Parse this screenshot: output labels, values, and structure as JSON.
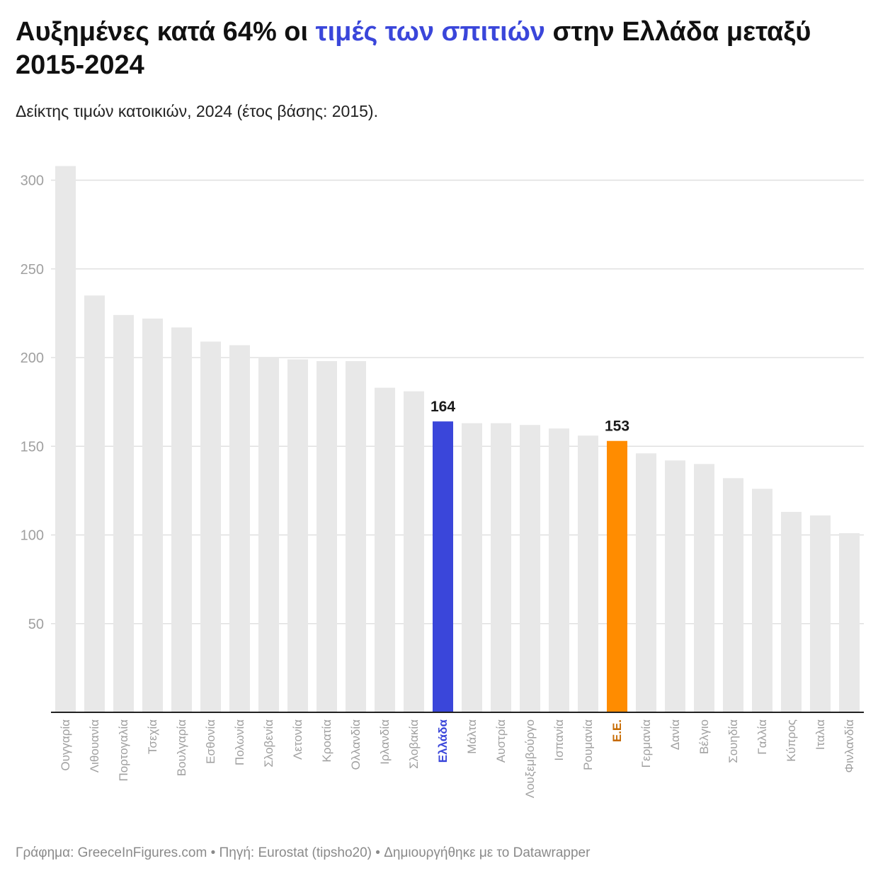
{
  "title": {
    "part1": "Αυξημένες κατά 64% οι ",
    "highlight": "τιμές των σπιτιών",
    "part2": " στην Ελλάδα μεταξύ 2015-2024"
  },
  "subtitle": "Δείκτης τιμών κατοικιών, 2024 (έτος βάσης: 2015).",
  "footer": {
    "credit": "Γράφημα: GreeceInFigures.com",
    "source": "Πηγή: Eurostat (tipsho20)",
    "tool": "Δημιουργήθηκε με το Datawrapper",
    "separator": " • "
  },
  "colors": {
    "default_bar": "#e8e8e8",
    "greece": "#3a46da",
    "eu": "#ff8c00",
    "eu_label": "#c66a00",
    "grid": "#e0e0e0",
    "tick_text": "#a0a0a0",
    "axis": "#222222"
  },
  "chart_data": {
    "type": "bar",
    "title": "Αυξημένες κατά 64% οι τιμές των σπιτιών στην Ελλάδα μεταξύ 2015-2024",
    "subtitle": "Δείκτης τιμών κατοικιών, 2024 (έτος βάσης: 2015).",
    "xlabel": "",
    "ylabel": "",
    "ylim": [
      0,
      310
    ],
    "yticks": [
      50,
      100,
      150,
      200,
      250,
      300
    ],
    "grid": true,
    "categories": [
      "Ουγγαρία",
      "Λιθουανία",
      "Πορτογαλία",
      "Τσεχία",
      "Βουλγαρία",
      "Εσθονία",
      "Πολωνία",
      "Σλοβενία",
      "Λετονία",
      "Κροατία",
      "Ολλανδία",
      "Ιρλανδία",
      "Σλοβακία",
      "Ελλάδα",
      "Μάλτα",
      "Αυστρία",
      "Λουξεμβούργο",
      "Ισπανία",
      "Ρουμανία",
      "Ε.Ε.",
      "Γερμανία",
      "Δανία",
      "Βέλγιο",
      "Σουηδία",
      "Γαλλία",
      "Κύπρος",
      "Ιταλια",
      "Φινλανδία"
    ],
    "values": [
      308,
      235,
      224,
      222,
      217,
      209,
      207,
      200,
      199,
      198,
      198,
      183,
      181,
      164,
      163,
      163,
      162,
      160,
      156,
      153,
      146,
      142,
      140,
      132,
      126,
      113,
      111,
      101
    ],
    "highlights": [
      {
        "category": "Ελλάδα",
        "label": "164",
        "color": "greece"
      },
      {
        "category": "Ε.Ε.",
        "label": "153",
        "color": "eu"
      }
    ]
  }
}
